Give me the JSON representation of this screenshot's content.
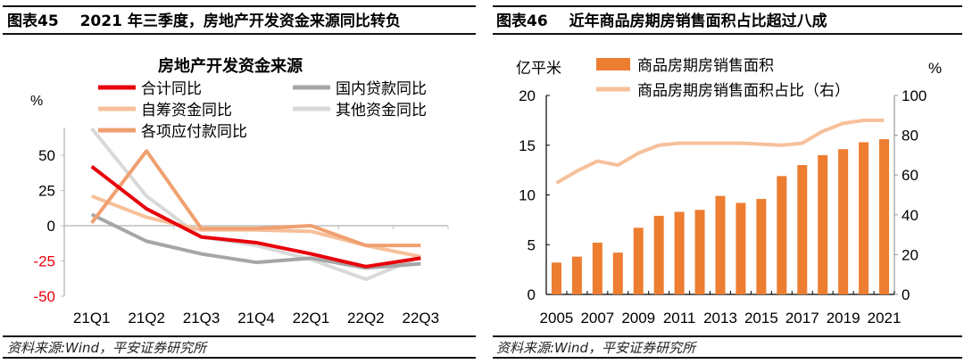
{
  "left_panel": {
    "figure_no": "图表45",
    "title": "2021 年三季度，房地产开发资金来源同比转负",
    "source": "资料来源:Wind，平安证券研究所"
  },
  "right_panel": {
    "figure_no": "图表46",
    "title": "近年商品房期房销售面积占比超过八成",
    "source": "资料来源:Wind，平安证券研究所"
  },
  "chart_data": [
    {
      "type": "line",
      "title": "房地产开发资金来源",
      "ylabel": "%",
      "ylim": [
        -50,
        70
      ],
      "yticks": [
        50,
        25,
        0,
        -25,
        -50
      ],
      "categories": [
        "21Q1",
        "21Q2",
        "21Q3",
        "21Q4",
        "22Q1",
        "22Q2",
        "22Q3"
      ],
      "series": [
        {
          "name": "合计同比",
          "color": "#e8000b",
          "values": [
            42,
            12,
            -8,
            -12,
            -20,
            -29,
            -23
          ]
        },
        {
          "name": "国内贷款同比",
          "color": "#a6a6a6",
          "values": [
            8,
            -11,
            -20,
            -26,
            -23,
            -30,
            -27
          ]
        },
        {
          "name": "自筹资金同比",
          "color": "#f7c09a",
          "values": [
            21,
            6,
            -3,
            -3,
            -4,
            -14,
            -22
          ]
        },
        {
          "name": "其他资金同比",
          "color": "#d9d9d9",
          "values": [
            69,
            21,
            -8,
            -14,
            -24,
            -38,
            -22
          ]
        },
        {
          "name": "各项应付款同比",
          "color": "#f0a070",
          "values": [
            2,
            53,
            -2,
            -2,
            0,
            -14,
            -14
          ]
        }
      ],
      "legend": "top"
    },
    {
      "type": "bar",
      "ylabel_left": "亿平米",
      "ylabel_right": "%",
      "ylim_left": [
        0,
        20
      ],
      "ylim_right": [
        0,
        100
      ],
      "yticks_left": [
        0,
        5,
        10,
        15,
        20
      ],
      "yticks_right": [
        0,
        20,
        40,
        60,
        80,
        100
      ],
      "x": [
        2005,
        2006,
        2007,
        2008,
        2009,
        2010,
        2011,
        2012,
        2013,
        2014,
        2015,
        2016,
        2017,
        2018,
        2019,
        2020,
        2021
      ],
      "xtick_labels": [
        "2005",
        "2007",
        "2009",
        "2011",
        "2013",
        "2015",
        "2017",
        "2019",
        "2021"
      ],
      "series": [
        {
          "name": "商品房期房销售面积",
          "type": "bar",
          "axis": "left",
          "color": "#ed7d31",
          "values": [
            3.2,
            3.8,
            5.2,
            4.2,
            6.7,
            7.9,
            8.3,
            8.5,
            9.9,
            9.2,
            9.6,
            11.9,
            13.0,
            14.0,
            14.6,
            15.3,
            15.6
          ]
        },
        {
          "name": "商品房期房销售面积占比（右）",
          "type": "line",
          "axis": "right",
          "color": "#f7c09a",
          "values": [
            56,
            62,
            67,
            65,
            71,
            75,
            76,
            76,
            76,
            76,
            75.5,
            75,
            76,
            82,
            86,
            87.5,
            87.5
          ]
        }
      ],
      "legend": "top"
    }
  ]
}
